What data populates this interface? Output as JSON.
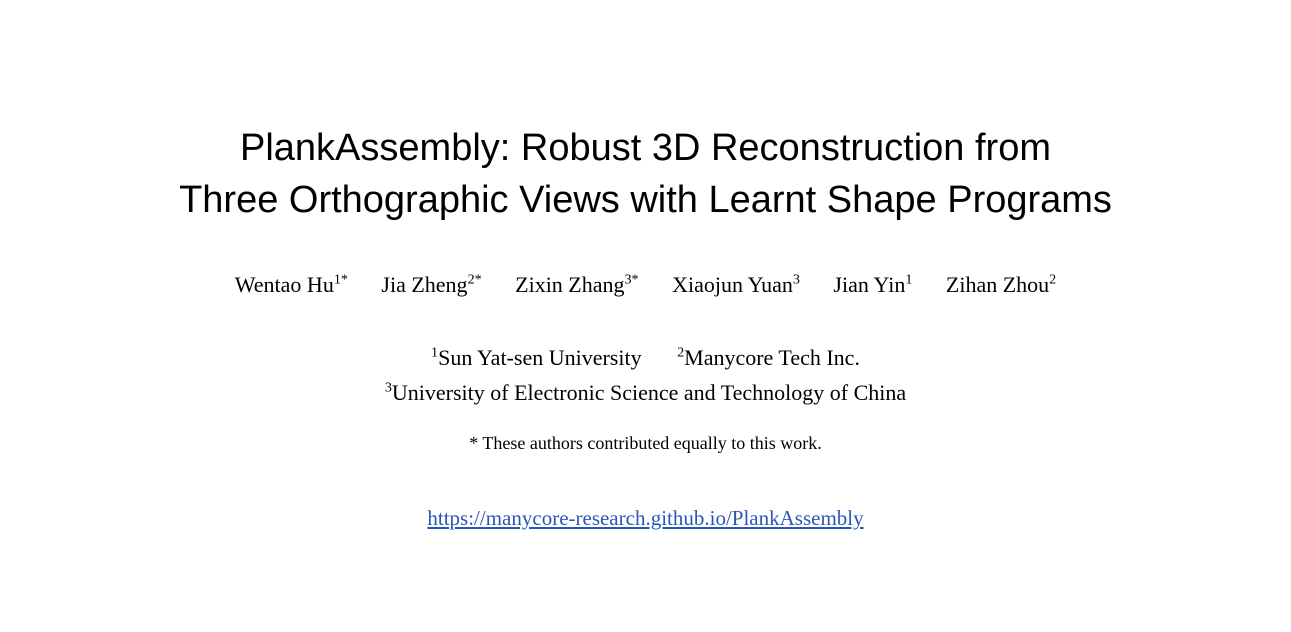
{
  "page": {
    "background_color": "#ffffff",
    "text_color": "#000000",
    "link_color": "#2a56b9"
  },
  "paper": {
    "title_lines": [
      "PlankAssembly: Robust 3D Reconstruction from",
      "Three Orthographic Views with Learnt Shape Programs"
    ],
    "authors": [
      {
        "name": "Wentao Hu",
        "sup": "1*"
      },
      {
        "name": "Jia Zheng",
        "sup": "2*"
      },
      {
        "name": "Zixin Zhang",
        "sup": "3*"
      },
      {
        "name": "Xiaojun Yuan",
        "sup": "3"
      },
      {
        "name": "Jian Yin",
        "sup": "1"
      },
      {
        "name": "Zihan Zhou",
        "sup": "2"
      }
    ],
    "affiliations": [
      {
        "sup": "1",
        "name": "Sun Yat-sen University"
      },
      {
        "sup": "2",
        "name": "Manycore Tech Inc."
      },
      {
        "sup": "3",
        "name": "University of Electronic Science and Technology of China"
      }
    ],
    "footnote": "* These authors contributed equally to this work.",
    "link": {
      "text": "https://manycore-research.github.io/PlankAssembly"
    }
  }
}
